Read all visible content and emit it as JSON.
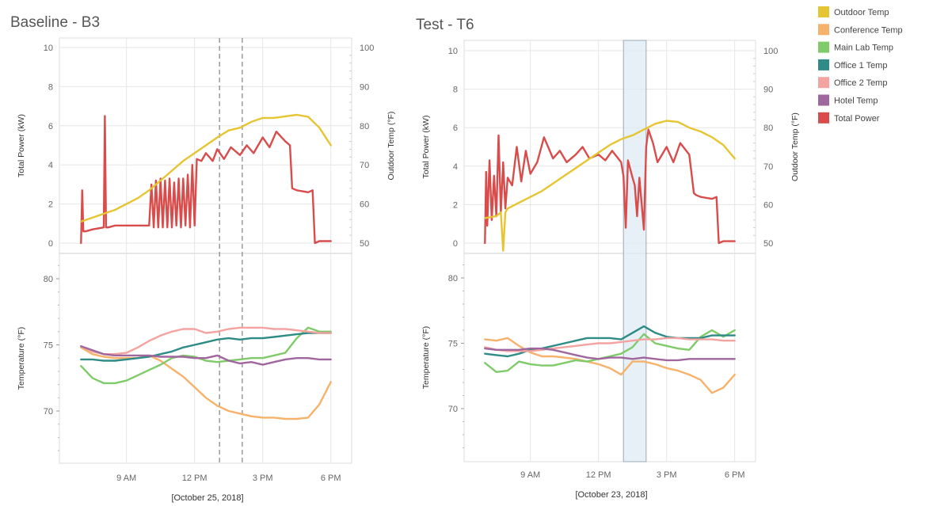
{
  "chart_data": [
    {
      "type": "line",
      "title": "Baseline - B3",
      "date_label": "[October 25, 2018]",
      "x_ticks": [
        "9 AM",
        "12 PM",
        "3 PM",
        "6 PM"
      ],
      "x_range_hours": [
        6.5,
        18.5
      ],
      "markers": {
        "style": "dashed-lines",
        "at_hours": [
          13.1,
          14.1
        ]
      },
      "top_pane": {
        "left_axis": {
          "label": "Total Power (kW)",
          "ticks": [
            "0",
            "2",
            "4",
            "6",
            "8",
            "10"
          ],
          "range": [
            0,
            10
          ]
        },
        "right_axis": {
          "label": "Outdoor Temp (°F)",
          "ticks": [
            "50",
            "60",
            "70",
            "80",
            "90",
            "100"
          ],
          "range": [
            50,
            100
          ]
        },
        "series": [
          {
            "name": "Total Power",
            "axis": "left",
            "x": [
              7,
              7.05,
              7.1,
              7.15,
              7.2,
              7.5,
              8,
              8.05,
              8.1,
              8.15,
              8.2,
              8.5,
              9,
              9.5,
              9.9,
              10,
              10.1,
              10.2,
              10.3,
              10.4,
              10.5,
              10.6,
              10.7,
              10.8,
              10.9,
              11,
              11.1,
              11.2,
              11.3,
              11.4,
              11.5,
              11.6,
              11.7,
              11.8,
              11.9,
              12,
              12.1,
              12.3,
              12.5,
              12.8,
              13,
              13.3,
              13.6,
              14,
              14.3,
              14.6,
              15,
              15.3,
              15.6,
              16,
              16.2,
              16.3,
              16.5,
              17,
              17.2,
              17.3,
              17.5,
              18
            ],
            "y": [
              0,
              2.7,
              0.6,
              0.6,
              0.6,
              0.7,
              0.8,
              6.5,
              0.8,
              0.8,
              0.8,
              0.9,
              0.9,
              0.9,
              0.9,
              0.9,
              3,
              0.8,
              3.2,
              0.8,
              3.3,
              0.8,
              3.2,
              0.8,
              3.3,
              0.8,
              3.1,
              0.9,
              3.3,
              0.8,
              3.3,
              0.9,
              3.5,
              0.8,
              4,
              0.9,
              4.3,
              4.2,
              4.6,
              4.2,
              4.8,
              4.3,
              4.9,
              4.5,
              5,
              4.6,
              5.4,
              4.9,
              5.7,
              5.2,
              5,
              2.8,
              2.7,
              2.6,
              2.7,
              0,
              0.1,
              0.1
            ]
          },
          {
            "name": "Outdoor Temp",
            "axis": "right",
            "x": [
              7,
              7.5,
              8,
              8.5,
              9,
              9.5,
              10,
              10.5,
              11,
              11.5,
              12,
              12.5,
              13,
              13.5,
              14,
              14.5,
              15,
              15.5,
              16,
              16.5,
              17,
              17.5,
              18
            ],
            "y": [
              55.5,
              56.5,
              57.5,
              58.5,
              60,
              61.5,
              63.5,
              66,
              68.5,
              71,
              73,
              75,
              77,
              78.8,
              79.5,
              81,
              82,
              82,
              82.4,
              82.8,
              82.3,
              79.5,
              75
            ]
          }
        ]
      },
      "bottom_pane": {
        "left_axis": {
          "label": "Temperature (°F)",
          "ticks": [
            "70",
            "75",
            "80"
          ],
          "range": [
            66,
            81
          ]
        },
        "series": [
          {
            "name": "Conference Temp",
            "x": [
              7,
              7.5,
              8,
              8.5,
              9,
              9.5,
              10,
              10.5,
              11,
              11.5,
              12,
              12.5,
              13,
              13.5,
              14,
              14.5,
              15,
              15.5,
              16,
              16.5,
              17,
              17.5,
              18
            ],
            "y": [
              74.8,
              74.3,
              74.1,
              74,
              74,
              74,
              74.2,
              73.8,
              73.2,
              72.6,
              71.8,
              71,
              70.4,
              70,
              69.8,
              69.6,
              69.5,
              69.5,
              69.4,
              69.4,
              69.5,
              70.5,
              72.2
            ]
          },
          {
            "name": "Main Lab Temp",
            "x": [
              7,
              7.5,
              8,
              8.5,
              9,
              9.5,
              10,
              10.5,
              11,
              11.5,
              12,
              12.5,
              13,
              13.5,
              14,
              14.5,
              15,
              15.5,
              16,
              16.5,
              17,
              17.5,
              18
            ],
            "y": [
              73.4,
              72.5,
              72.1,
              72.1,
              72.3,
              72.7,
              73.1,
              73.5,
              74,
              74.2,
              74.1,
              73.8,
              73.7,
              73.8,
              73.9,
              74,
              74,
              74.2,
              74.4,
              75.5,
              76.3,
              76,
              76
            ]
          },
          {
            "name": "Office 1 Temp",
            "x": [
              7,
              7.5,
              8,
              8.5,
              9,
              9.5,
              10,
              10.5,
              11,
              11.5,
              12,
              12.5,
              13,
              13.5,
              14,
              14.5,
              15,
              15.5,
              16,
              16.5,
              17,
              17.5,
              18
            ],
            "y": [
              73.9,
              73.9,
              73.8,
              73.8,
              73.9,
              74,
              74.1,
              74.3,
              74.5,
              74.8,
              75,
              75.2,
              75.4,
              75.5,
              75.4,
              75.5,
              75.5,
              75.6,
              75.7,
              75.8,
              75.9,
              75.9,
              75.9
            ]
          },
          {
            "name": "Office 2 Temp",
            "x": [
              7,
              7.5,
              8,
              8.5,
              9,
              9.5,
              10,
              10.5,
              11,
              11.5,
              12,
              12.5,
              13,
              13.5,
              14,
              14.5,
              15,
              15.5,
              16,
              16.5,
              17,
              17.5,
              18
            ],
            "y": [
              74.9,
              74.5,
              74.3,
              74.3,
              74.4,
              74.8,
              75.3,
              75.7,
              76,
              76.2,
              76.2,
              75.9,
              76,
              76.2,
              76.3,
              76.3,
              76.3,
              76.2,
              76.2,
              76.1,
              76,
              75.9,
              75.9
            ]
          },
          {
            "name": "Hotel Temp",
            "x": [
              7,
              7.5,
              8,
              8.5,
              9,
              9.5,
              10,
              10.5,
              11,
              11.5,
              12,
              12.5,
              13,
              13.5,
              14,
              14.5,
              15,
              15.5,
              16,
              16.5,
              17,
              17.5,
              18
            ],
            "y": [
              74.9,
              74.6,
              74.3,
              74.2,
              74.2,
              74.2,
              74.2,
              74.1,
              74.1,
              74.1,
              74,
              74,
              74.2,
              73.8,
              73.6,
              73.7,
              73.5,
              73.7,
              73.9,
              74,
              74,
              73.9,
              73.9
            ]
          }
        ]
      }
    },
    {
      "type": "line",
      "title": "Test - T6",
      "date_label": "[October 23, 2018]",
      "x_ticks": [
        "9 AM",
        "12 PM",
        "3 PM",
        "6 PM"
      ],
      "x_range_hours": [
        6.5,
        18.5
      ],
      "markers": {
        "style": "shaded-band",
        "at_hours": [
          13.1,
          14.1
        ]
      },
      "top_pane": {
        "left_axis": {
          "label": "Total Power (kW)",
          "ticks": [
            "0",
            "2",
            "4",
            "6",
            "8",
            "10"
          ],
          "range": [
            0,
            10
          ]
        },
        "right_axis": {
          "label": "Outdoor Temp (°F)",
          "ticks": [
            "50",
            "60",
            "70",
            "80",
            "90",
            "100"
          ],
          "range": [
            50,
            100
          ]
        },
        "series": [
          {
            "name": "Total Power",
            "axis": "left",
            "x": [
              7,
              7.05,
              7.1,
              7.2,
              7.3,
              7.4,
              7.5,
              7.6,
              7.7,
              7.8,
              7.9,
              8,
              8.2,
              8.4,
              8.6,
              8.8,
              9,
              9.3,
              9.6,
              10,
              10.3,
              10.6,
              11,
              11.3,
              11.6,
              12,
              12.3,
              12.6,
              13,
              13.1,
              13.2,
              13.3,
              13.5,
              13.6,
              13.7,
              13.8,
              14,
              14.1,
              14.2,
              14.4,
              14.6,
              15,
              15.3,
              15.6,
              16,
              16.2,
              16.3,
              16.5,
              17,
              17.2,
              17.3,
              17.5,
              18
            ],
            "y": [
              0,
              3.7,
              0.9,
              4.3,
              1.2,
              3.5,
              1.4,
              5.6,
              1.6,
              4.2,
              1.8,
              3.4,
              3,
              5,
              3.2,
              4.8,
              3.6,
              4.2,
              5.5,
              4.4,
              4.8,
              4.2,
              4.6,
              5,
              4.4,
              4.6,
              4.3,
              4.8,
              4.2,
              3.5,
              0.8,
              4.3,
              3.4,
              3,
              1.4,
              3.4,
              0.7,
              5,
              5.9,
              5.2,
              4.2,
              5,
              4.2,
              5.2,
              4.6,
              2.6,
              2.5,
              2.4,
              2.3,
              2.4,
              0,
              0.1,
              0.1
            ]
          },
          {
            "name": "Outdoor Temp",
            "axis": "right",
            "x": [
              7,
              7.5,
              7.7,
              7.8,
              7.9,
              8,
              8.5,
              9,
              9.5,
              10,
              10.5,
              11,
              11.5,
              12,
              12.5,
              13,
              13.5,
              14,
              14.5,
              15,
              15.5,
              16,
              16.5,
              17,
              17.5,
              18
            ],
            "y": [
              56.5,
              57,
              58,
              48,
              58,
              59,
              60.5,
              62,
              63.5,
              65.5,
              67.5,
              69.5,
              71.5,
              73.5,
              75.5,
              77,
              78,
              79.5,
              81,
              81.8,
              81.5,
              80,
              79,
              77.5,
              75.5,
              72
            ]
          }
        ]
      },
      "bottom_pane": {
        "left_axis": {
          "label": "Temperature (°F)",
          "ticks": [
            "70",
            "75",
            "80"
          ],
          "range": [
            66,
            81
          ]
        },
        "series": [
          {
            "name": "Conference Temp",
            "x": [
              7,
              7.5,
              8,
              8.5,
              9,
              9.5,
              10,
              10.5,
              11,
              11.5,
              12,
              12.5,
              13,
              13.5,
              14,
              14.5,
              15,
              15.5,
              16,
              16.5,
              17,
              17.5,
              18
            ],
            "y": [
              75.3,
              75.2,
              75.4,
              74.8,
              74.3,
              74,
              74,
              73.9,
              73.8,
              73.6,
              73.4,
              73.1,
              72.6,
              73.6,
              73.6,
              73.4,
              73.1,
              72.9,
              72.6,
              72.2,
              71.2,
              71.6,
              72.6
            ]
          },
          {
            "name": "Main Lab Temp",
            "x": [
              7,
              7.5,
              8,
              8.5,
              9,
              9.5,
              10,
              10.5,
              11,
              11.5,
              12,
              12.5,
              13,
              13.5,
              14,
              14.5,
              15,
              15.5,
              16,
              16.5,
              17,
              17.5,
              18
            ],
            "y": [
              73.5,
              72.8,
              72.9,
              73.6,
              73.4,
              73.3,
              73.3,
              73.5,
              73.7,
              73.6,
              73.8,
              74,
              74.2,
              74.7,
              75.7,
              75,
              74.8,
              74.6,
              74.5,
              75.5,
              76,
              75.5,
              76
            ]
          },
          {
            "name": "Office 1 Temp",
            "x": [
              7,
              7.5,
              8,
              8.5,
              9,
              9.5,
              10,
              10.5,
              11,
              11.5,
              12,
              12.5,
              13,
              13.5,
              14,
              14.5,
              15,
              15.5,
              16,
              16.5,
              17,
              17.5,
              18
            ],
            "y": [
              74.2,
              74.1,
              74,
              74.2,
              74.5,
              74.6,
              74.8,
              75,
              75.2,
              75.4,
              75.4,
              75.4,
              75.3,
              75.8,
              76.3,
              75.8,
              75.5,
              75.4,
              75.4,
              75.4,
              75.6,
              75.6,
              75.6
            ]
          },
          {
            "name": "Office 2 Temp",
            "x": [
              7,
              7.5,
              8,
              8.5,
              9,
              9.5,
              10,
              10.5,
              11,
              11.5,
              12,
              12.5,
              13,
              13.5,
              14,
              14.5,
              15,
              15.5,
              16,
              16.5,
              17,
              17.5,
              18
            ],
            "y": [
              74.7,
              74.5,
              74.4,
              74.4,
              74.4,
              74.5,
              74.6,
              74.7,
              74.8,
              74.9,
              75,
              75,
              75.1,
              75.2,
              75.3,
              75.3,
              75.4,
              75.4,
              75.3,
              75.3,
              75.3,
              75.2,
              75.2
            ]
          },
          {
            "name": "Hotel Temp",
            "x": [
              7,
              7.5,
              8,
              8.5,
              9,
              9.5,
              10,
              10.5,
              11,
              11.5,
              12,
              12.5,
              13,
              13.5,
              14,
              14.5,
              15,
              15.5,
              16,
              16.5,
              17,
              17.5,
              18
            ],
            "y": [
              74.6,
              74.5,
              74.5,
              74.5,
              74.6,
              74.6,
              74.5,
              74.3,
              74.1,
              73.9,
              73.8,
              73.9,
              73.9,
              73.8,
              73.9,
              73.8,
              73.7,
              73.7,
              73.8,
              73.8,
              73.8,
              73.8,
              73.8
            ]
          }
        ]
      }
    }
  ],
  "legend": {
    "items": [
      {
        "label": "Outdoor Temp",
        "color": "#E6C532"
      },
      {
        "label": "Conference Temp",
        "color": "#F6B26B"
      },
      {
        "label": "Main Lab Temp",
        "color": "#7FCB6A"
      },
      {
        "label": "Office 1 Temp",
        "color": "#2E8B85"
      },
      {
        "label": "Office 2 Temp",
        "color": "#F4A3A0"
      },
      {
        "label": "Hotel Temp",
        "color": "#A0669E"
      },
      {
        "label": "Total Power",
        "color": "#D94C4C"
      }
    ]
  }
}
